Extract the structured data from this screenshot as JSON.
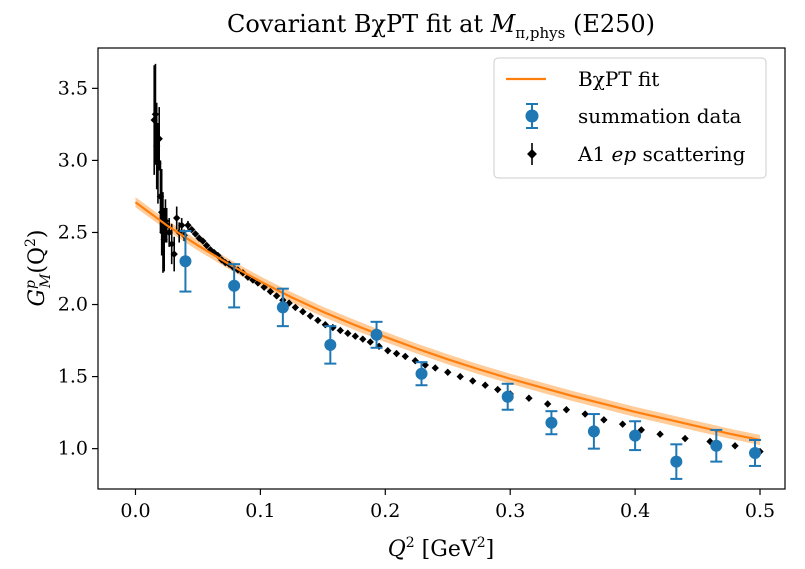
{
  "chart_data": {
    "type": "scatter",
    "title": {
      "main": "Covariant BχPT fit at ",
      "symbol": "M",
      "subscript": "π,phys",
      "suffix": " (E250)"
    },
    "xlabel": {
      "symbol": "Q",
      "power": "2",
      "unit": " [GeV",
      "unit_power": "2",
      "unit_close": "]"
    },
    "ylabel": {
      "symbol": "G",
      "sup": "p",
      "sub": "M",
      "arg_open": "(Q",
      "arg_power": "2",
      "arg_close": ")"
    },
    "xlim": [
      -0.03,
      0.52
    ],
    "ylim": [
      0.72,
      3.78
    ],
    "xticks": [
      0.0,
      0.1,
      0.2,
      0.3,
      0.4,
      0.5
    ],
    "xtick_labels": [
      "0.0",
      "0.1",
      "0.2",
      "0.3",
      "0.4",
      "0.5"
    ],
    "yticks": [
      1.0,
      1.5,
      2.0,
      2.5,
      3.0,
      3.5
    ],
    "ytick_labels": [
      "1.0",
      "1.5",
      "2.0",
      "2.5",
      "3.0",
      "3.5"
    ],
    "legend": {
      "position": "top-right",
      "entries": [
        {
          "key": "fit",
          "label": "BχPT fit"
        },
        {
          "key": "summation",
          "label": "summation data"
        },
        {
          "key": "a1",
          "label_prefix": "A1 ",
          "label_italic": "ep",
          "label_suffix": " scattering"
        }
      ]
    },
    "colors": {
      "fit": "#ff7f0e",
      "fit_band": "#ffbb78",
      "summation": "#1f77b4",
      "a1": "#000000"
    },
    "series": [
      {
        "name": "BχPT fit",
        "kind": "line_band",
        "x": [
          0.0,
          0.025,
          0.05,
          0.075,
          0.1,
          0.125,
          0.15,
          0.175,
          0.2,
          0.225,
          0.25,
          0.275,
          0.3,
          0.325,
          0.35,
          0.375,
          0.4,
          0.425,
          0.45,
          0.475,
          0.5
        ],
        "y": [
          2.71,
          2.55,
          2.41,
          2.28,
          2.16,
          2.05,
          1.95,
          1.86,
          1.775,
          1.695,
          1.62,
          1.55,
          1.485,
          1.425,
          1.365,
          1.31,
          1.255,
          1.205,
          1.155,
          1.105,
          1.06
        ],
        "band_halfwidth": 0.035
      },
      {
        "name": "summation data",
        "kind": "errorbar",
        "x": [
          0.04,
          0.079,
          0.118,
          0.156,
          0.193,
          0.229,
          0.298,
          0.333,
          0.367,
          0.4,
          0.433,
          0.465,
          0.496
        ],
        "y": [
          2.3,
          2.13,
          1.98,
          1.72,
          1.79,
          1.52,
          1.36,
          1.18,
          1.12,
          1.09,
          0.91,
          1.02,
          0.97
        ],
        "yerr": [
          0.21,
          0.15,
          0.13,
          0.13,
          0.09,
          0.08,
          0.09,
          0.08,
          0.12,
          0.1,
          0.12,
          0.11,
          0.09
        ]
      },
      {
        "name": "A1 ep scattering",
        "kind": "errorbar_small",
        "x": [
          0.015,
          0.016,
          0.017,
          0.018,
          0.019,
          0.02,
          0.021,
          0.022,
          0.023,
          0.024,
          0.025,
          0.027,
          0.029,
          0.031,
          0.033,
          0.035,
          0.037,
          0.039,
          0.042,
          0.045,
          0.048,
          0.051,
          0.054,
          0.057,
          0.06,
          0.063,
          0.066,
          0.069,
          0.072,
          0.075,
          0.078,
          0.082,
          0.086,
          0.09,
          0.094,
          0.098,
          0.103,
          0.108,
          0.113,
          0.118,
          0.123,
          0.128,
          0.134,
          0.14,
          0.146,
          0.152,
          0.158,
          0.164,
          0.17,
          0.176,
          0.182,
          0.188,
          0.195,
          0.202,
          0.209,
          0.216,
          0.224,
          0.232,
          0.24,
          0.25,
          0.26,
          0.27,
          0.28,
          0.29,
          0.3,
          0.315,
          0.33,
          0.345,
          0.36,
          0.375,
          0.39,
          0.405,
          0.42,
          0.44,
          0.46,
          0.48,
          0.5
        ],
        "y": [
          3.28,
          3.32,
          3.1,
          2.98,
          3.15,
          2.75,
          2.64,
          2.5,
          2.45,
          2.58,
          2.55,
          2.5,
          2.42,
          2.35,
          2.6,
          2.5,
          2.55,
          2.48,
          2.55,
          2.52,
          2.49,
          2.46,
          2.44,
          2.41,
          2.38,
          2.36,
          2.34,
          2.31,
          2.29,
          2.28,
          2.26,
          2.24,
          2.22,
          2.19,
          2.17,
          2.15,
          2.12,
          2.09,
          2.06,
          2.03,
          2.01,
          1.98,
          1.95,
          1.92,
          1.89,
          1.86,
          1.84,
          1.82,
          1.8,
          1.78,
          1.76,
          1.74,
          1.71,
          1.68,
          1.66,
          1.64,
          1.61,
          1.58,
          1.56,
          1.53,
          1.5,
          1.47,
          1.44,
          1.41,
          1.38,
          1.35,
          1.31,
          1.27,
          1.24,
          1.2,
          1.17,
          1.13,
          1.1,
          1.07,
          1.05,
          1.02,
          0.98
        ],
        "yerr": [
          0.38,
          0.35,
          0.3,
          0.28,
          0.22,
          0.25,
          0.3,
          0.28,
          0.22,
          0.15,
          0.12,
          0.1,
          0.14,
          0.12,
          0.08,
          0.07,
          0.05,
          0.04,
          0.03,
          0.02,
          0.02,
          0.02,
          0.02,
          0.02,
          0.02,
          0.02,
          0.02,
          0.02,
          0.02,
          0.02,
          0.02,
          0.02,
          0.02,
          0.02,
          0.02,
          0.02,
          0.02,
          0.02,
          0.02,
          0.02,
          0.02,
          0.02,
          0.02,
          0.02,
          0.02,
          0.02,
          0.02,
          0.02,
          0.02,
          0.02,
          0.02,
          0.02,
          0.02,
          0.02,
          0.02,
          0.02,
          0.02,
          0.02,
          0.02,
          0.02,
          0.02,
          0.02,
          0.02,
          0.02,
          0.02,
          0.02,
          0.02,
          0.02,
          0.02,
          0.02,
          0.02,
          0.02,
          0.02,
          0.02,
          0.02,
          0.02,
          0.02
        ]
      }
    ]
  }
}
